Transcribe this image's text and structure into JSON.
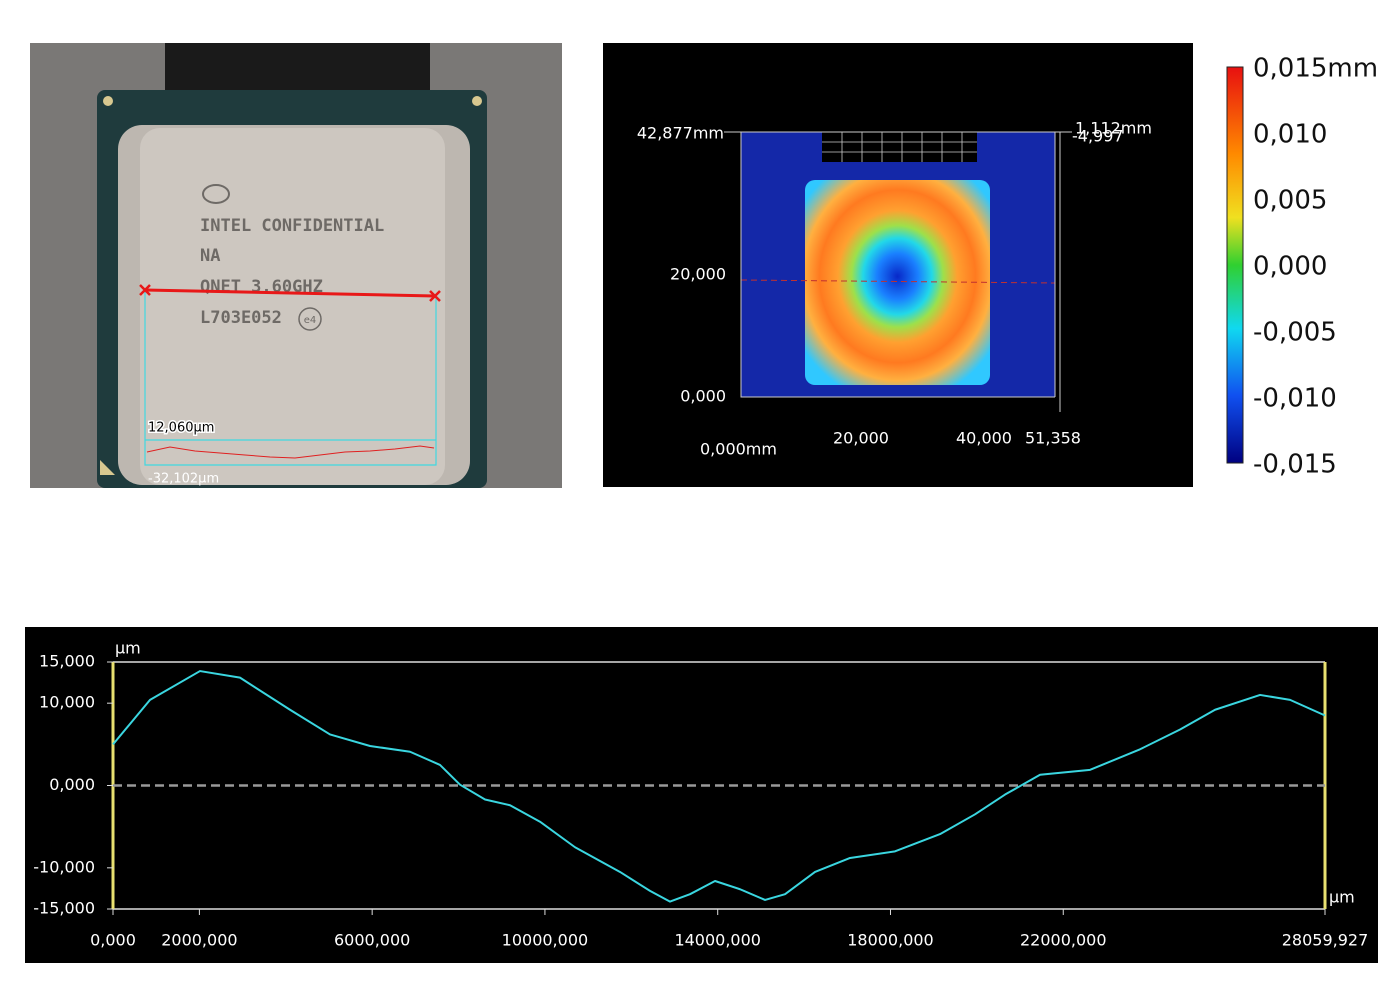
{
  "photo": {
    "marking": [
      "INTEL CONFIDENTIAL",
      "NA",
      "QNET 3.60GHZ",
      "L703E052"
    ],
    "badge": "e4",
    "profile_max": "12,060μm",
    "profile_min": "-32,102μm"
  },
  "heatmap": {
    "y_top": "42,877mm",
    "y_mid": "20,000",
    "y_bottom": "0,000",
    "x_left": "0,000mm",
    "x_ticks": [
      "20,000",
      "40,000",
      "51,358"
    ],
    "z_top": "1,112mm",
    "z_bottom": "-4,997"
  },
  "colorbar": {
    "labels": [
      "0,015mm",
      "0,010",
      "0,005",
      "0,000",
      "-0,005",
      "-0,010",
      "-0,015"
    ]
  },
  "chart_data": {
    "type": "line",
    "y_label": "μm",
    "x_label": "μm",
    "xlim": [
      0,
      28059.927
    ],
    "ylim": [
      -15,
      15
    ],
    "xticks": [
      {
        "value": 0,
        "label": "0,000"
      },
      {
        "value": 2000,
        "label": "2000,000"
      },
      {
        "value": 6000,
        "label": "6000,000"
      },
      {
        "value": 10000,
        "label": "10000,000"
      },
      {
        "value": 14000,
        "label": "14000,000"
      },
      {
        "value": 18000,
        "label": "18000,000"
      },
      {
        "value": 22000,
        "label": "22000,000"
      },
      {
        "value": 28059.927,
        "label": "28059,927"
      }
    ],
    "yticks": [
      {
        "value": 15,
        "label": "15,000"
      },
      {
        "value": 10,
        "label": "10,000"
      },
      {
        "value": 0,
        "label": "0,000"
      },
      {
        "value": -10,
        "label": "-10,000"
      },
      {
        "value": -15,
        "label": "-15,000"
      }
    ],
    "series": [
      {
        "color": "#3ad6e0",
        "x": [
          0,
          857,
          2014,
          2940,
          4098,
          5024,
          5951,
          6877,
          7571,
          8034,
          8613,
          9192,
          9886,
          10697,
          11739,
          12433,
          12896,
          13359,
          13938,
          14517,
          15096,
          15559,
          16253,
          17064,
          18106,
          19148,
          19958,
          20653,
          21463,
          22621,
          23778,
          24705,
          25515,
          26557,
          27252,
          28059.927
        ],
        "values": [
          5,
          10.4,
          13.9,
          13.1,
          9.2,
          6.2,
          4.8,
          4.1,
          2.5,
          0.1,
          -1.7,
          -2.4,
          -4.4,
          -7.5,
          -10.5,
          -12.8,
          -14.1,
          -13.2,
          -11.6,
          -12.6,
          -13.9,
          -13.2,
          -10.5,
          -8.8,
          -8.0,
          -5.9,
          -3.5,
          -1.1,
          1.3,
          1.9,
          4.4,
          6.8,
          9.2,
          11.0,
          10.4,
          8.5
        ]
      }
    ]
  }
}
